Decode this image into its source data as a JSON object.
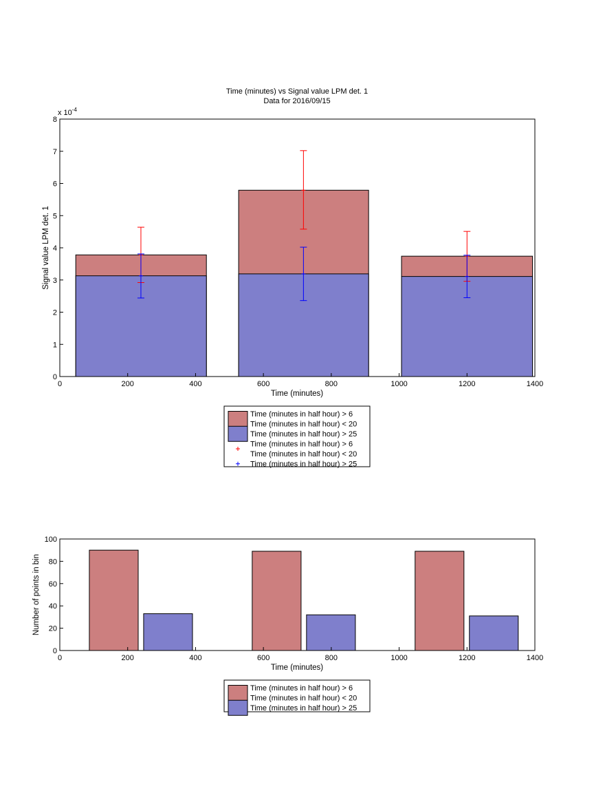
{
  "chart_data": [
    {
      "type": "bar",
      "title": "Time (minutes) vs Signal value LPM det. 1",
      "subtitle": "Data for 2016/09/15",
      "xlabel": "Time (minutes)",
      "ylabel": "Signal value LPM det. 1",
      "xlim": [
        0,
        1400
      ],
      "ylim": [
        0,
        8
      ],
      "y_exponent_label": "x 10",
      "y_exponent_power": "-4",
      "xticks": [
        "0",
        "200",
        "400",
        "600",
        "800",
        "1000",
        "1200",
        "1400"
      ],
      "yticks": [
        "0",
        "1",
        "2",
        "3",
        "4",
        "5",
        "6",
        "7",
        "8"
      ],
      "grid": false,
      "legend_position": "below",
      "bar_intervals": [
        [
          47,
          432
        ],
        [
          527,
          910
        ],
        [
          1007,
          1393
        ]
      ],
      "series": [
        {
          "name": "Time (minutes in half hour) > 6\nTime (minutes in half hour) < 20",
          "color": "#cc7f7f",
          "values": [
            3.78,
            5.79,
            3.74
          ],
          "errorbars": {
            "x": [
              239,
              718,
              1200
            ],
            "mean": [
              3.78,
              5.79,
              3.74
            ],
            "lower": [
              2.92,
              4.58,
              2.96
            ],
            "upper": [
              4.64,
              7.02,
              4.51
            ],
            "color": "#ff0000"
          }
        },
        {
          "name": "Time (minutes in half hour) > 25",
          "color": "#7f7fcc",
          "values": [
            3.13,
            3.19,
            3.11
          ],
          "errorbars": {
            "x": [
              239,
              718,
              1200
            ],
            "mean": [
              3.13,
              3.19,
              3.11
            ],
            "lower": [
              2.44,
              2.36,
              2.45
            ],
            "upper": [
              3.81,
              4.02,
              3.77
            ],
            "color": "#0000ff"
          }
        }
      ],
      "legend": [
        {
          "kind": "patch",
          "color": "#cc7f7f",
          "lines": [
            "Time (minutes in half hour) > 6",
            "Time (minutes in half hour) < 20"
          ]
        },
        {
          "kind": "patch",
          "color": "#7f7fcc",
          "lines": [
            "Time (minutes in half hour) > 25"
          ]
        },
        {
          "kind": "marker",
          "color": "#ff0000",
          "lines": [
            "Time (minutes in half hour) > 6",
            "Time (minutes in half hour) < 20"
          ]
        },
        {
          "kind": "marker",
          "color": "#0000ff",
          "lines": [
            "Time (minutes in half hour) > 25"
          ]
        }
      ]
    },
    {
      "type": "bar",
      "xlabel": "Time (minutes)",
      "ylabel": "Number of points in bin",
      "xlim": [
        0,
        1400
      ],
      "ylim": [
        0,
        100
      ],
      "xticks": [
        "0",
        "200",
        "400",
        "600",
        "800",
        "1000",
        "1200",
        "1400"
      ],
      "yticks": [
        "0",
        "20",
        "40",
        "60",
        "80",
        "100"
      ],
      "grid": false,
      "legend_position": "below",
      "bars": [
        {
          "x0": 87,
          "x1": 231,
          "value": 90,
          "series": 0
        },
        {
          "x0": 247,
          "x1": 391,
          "value": 33,
          "series": 1
        },
        {
          "x0": 567,
          "x1": 711,
          "value": 89,
          "series": 0
        },
        {
          "x0": 727,
          "x1": 871,
          "value": 32,
          "series": 1
        },
        {
          "x0": 1047,
          "x1": 1191,
          "value": 89,
          "series": 0
        },
        {
          "x0": 1207,
          "x1": 1351,
          "value": 31,
          "series": 1
        }
      ],
      "series": [
        {
          "name": "Time (minutes in half hour) > 6\nTime (minutes in half hour) < 20",
          "color": "#cc7f7f"
        },
        {
          "name": "Time (minutes in half hour) > 25",
          "color": "#7f7fcc"
        }
      ],
      "legend": [
        {
          "kind": "patch",
          "color": "#cc7f7f",
          "lines": [
            "Time (minutes in half hour) > 6",
            "Time (minutes in half hour) < 20"
          ]
        },
        {
          "kind": "patch",
          "color": "#7f7fcc",
          "lines": [
            "Time (minutes in half hour) > 25"
          ]
        }
      ]
    }
  ]
}
